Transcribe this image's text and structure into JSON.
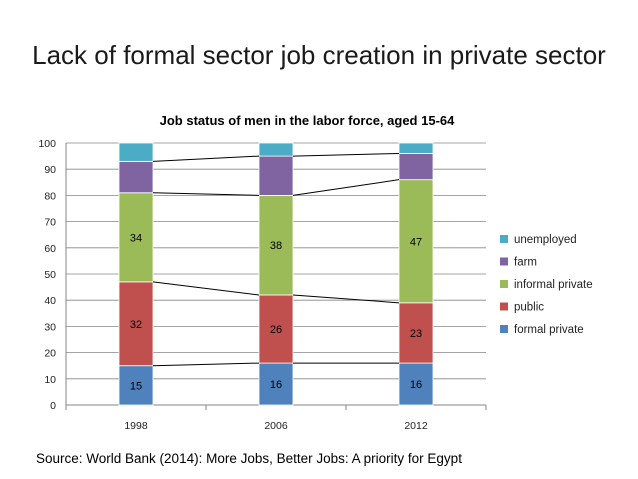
{
  "slide": {
    "title": "Lack of formal sector job creation in private sector",
    "source": "Source: World Bank (2014): More Jobs, Better Jobs: A priority for Egypt"
  },
  "chart_data": {
    "type": "bar",
    "stacked": true,
    "title": "Job status of men in the labor force, aged 15-64",
    "xlabel": "",
    "ylabel": "",
    "categories": [
      "1998",
      "2006",
      "2012"
    ],
    "ylim": [
      0,
      100
    ],
    "yticks": [
      0,
      10,
      20,
      30,
      40,
      50,
      60,
      70,
      80,
      90,
      100
    ],
    "grid": true,
    "legend_position": "right",
    "series": [
      {
        "name": "formal private",
        "color": "#4f81bd",
        "values": [
          15,
          16,
          16
        ],
        "labels": [
          "15",
          "16",
          "16"
        ]
      },
      {
        "name": "public",
        "color": "#c0504d",
        "values": [
          32,
          26,
          23
        ],
        "labels": [
          "32",
          "26",
          "23"
        ]
      },
      {
        "name": "informal private",
        "color": "#9bbb59",
        "values": [
          34,
          38,
          47
        ],
        "labels": [
          "34",
          "38",
          "47"
        ]
      },
      {
        "name": "farm",
        "color": "#8064a2",
        "values": [
          12,
          15,
          10
        ],
        "labels": null
      },
      {
        "name": "unemployed",
        "color": "#4bacc6",
        "values": [
          7,
          5,
          4
        ],
        "labels": null
      }
    ],
    "series_lines": true
  }
}
